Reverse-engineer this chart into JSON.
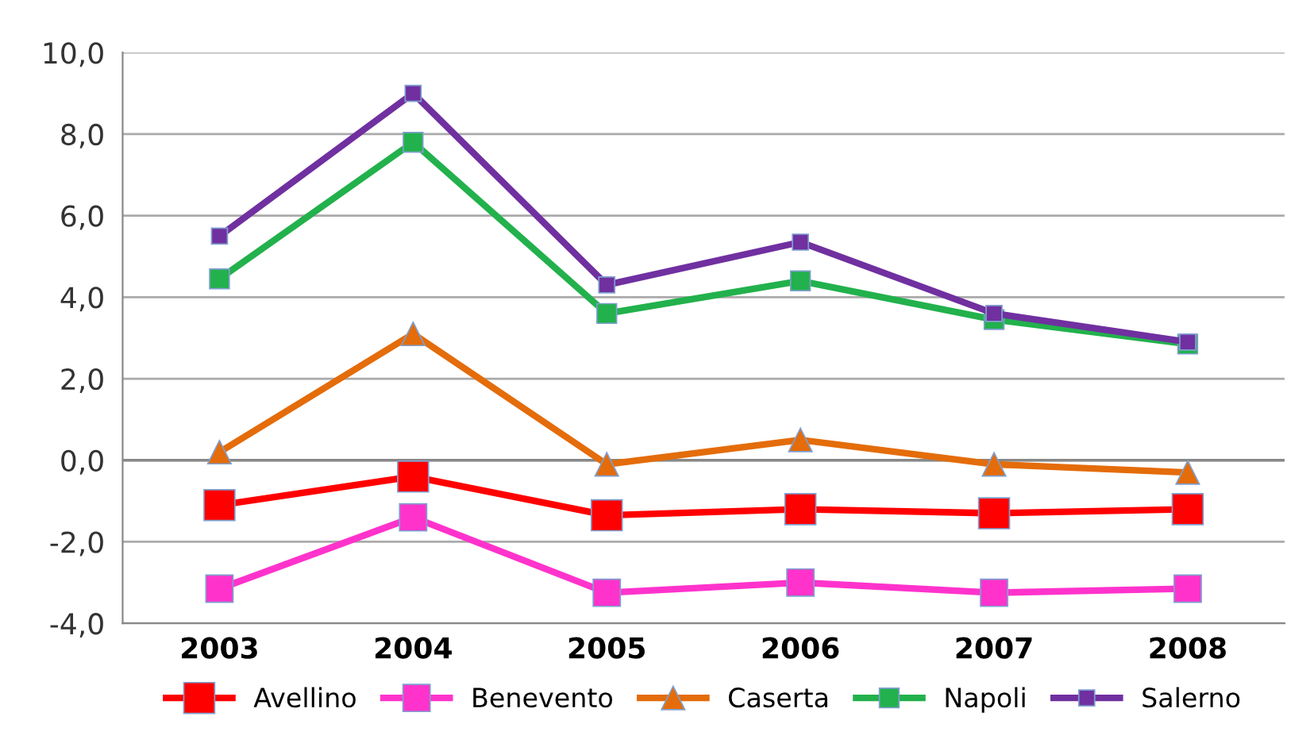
{
  "chart_data": {
    "type": "line",
    "categories": [
      "2003",
      "2004",
      "2005",
      "2006",
      "2007",
      "2008"
    ],
    "series": [
      {
        "name": "Avellino",
        "color": "#ff0000",
        "marker": "square",
        "values": [
          -1.1,
          -0.4,
          -1.35,
          -1.2,
          -1.3,
          -1.2
        ]
      },
      {
        "name": "Benevento",
        "color": "#ff33cc",
        "marker": "square",
        "values": [
          -3.15,
          -1.4,
          -3.25,
          -3.0,
          -3.25,
          -3.15
        ]
      },
      {
        "name": "Caserta",
        "color": "#e46c0a",
        "marker": "triangle",
        "values": [
          0.2,
          3.1,
          -0.1,
          0.5,
          -0.1,
          -0.3
        ]
      },
      {
        "name": "Napoli",
        "color": "#22b14c",
        "marker": "square",
        "values": [
          4.45,
          7.8,
          3.6,
          4.4,
          3.45,
          2.85
        ]
      },
      {
        "name": "Salerno",
        "color": "#7030a0",
        "marker": "square",
        "values": [
          5.5,
          9.0,
          4.3,
          5.35,
          3.6,
          2.9
        ]
      }
    ],
    "ylim": [
      -4,
      10
    ],
    "yticks": [
      {
        "value": -4,
        "label": "-4,0"
      },
      {
        "value": -2,
        "label": "-2,0"
      },
      {
        "value": 0,
        "label": "0,0"
      },
      {
        "value": 2,
        "label": "2,0"
      },
      {
        "value": 4,
        "label": "4,0"
      },
      {
        "value": 6,
        "label": "6,0"
      },
      {
        "value": 8,
        "label": "8,0"
      },
      {
        "value": 10,
        "label": "10,0"
      }
    ],
    "grid": "y",
    "legend": "bottom",
    "line_style": "solid"
  }
}
